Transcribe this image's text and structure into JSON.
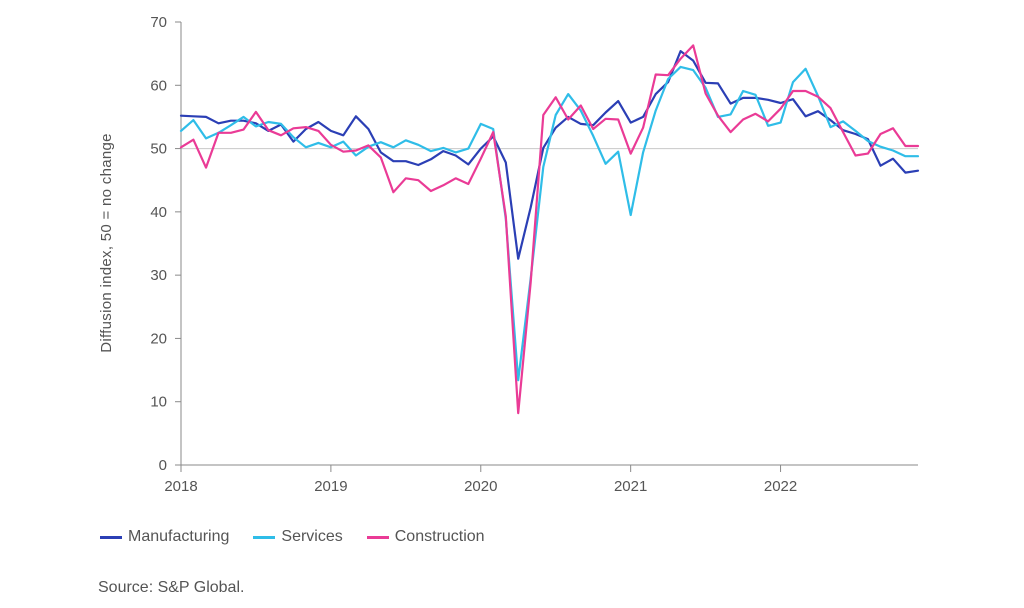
{
  "chart_data": {
    "type": "line",
    "ylabel": "Diffusion index, 50 = no change",
    "ylim": [
      0,
      70
    ],
    "yticks": [
      0,
      10,
      20,
      30,
      40,
      50,
      60,
      70
    ],
    "xlim": [
      2018.0,
      2022.917
    ],
    "xticks": [
      2018,
      2019,
      2020,
      2021,
      2022
    ],
    "xtick_labels": [
      "2018",
      "2019",
      "2020",
      "2021",
      "2022"
    ],
    "reference_line": 50,
    "x": [
      2018.0,
      2018.083,
      2018.167,
      2018.25,
      2018.333,
      2018.417,
      2018.5,
      2018.583,
      2018.667,
      2018.75,
      2018.833,
      2018.917,
      2019.0,
      2019.083,
      2019.167,
      2019.25,
      2019.333,
      2019.417,
      2019.5,
      2019.583,
      2019.667,
      2019.75,
      2019.833,
      2019.917,
      2020.0,
      2020.083,
      2020.167,
      2020.25,
      2020.333,
      2020.417,
      2020.5,
      2020.583,
      2020.667,
      2020.75,
      2020.833,
      2020.917,
      2021.0,
      2021.083,
      2021.167,
      2021.25,
      2021.333,
      2021.417,
      2021.5,
      2021.583,
      2021.667,
      2021.75,
      2021.833,
      2021.917,
      2022.0,
      2022.083,
      2022.167,
      2022.25,
      2022.333,
      2022.417,
      2022.5,
      2022.583,
      2022.667,
      2022.75,
      2022.833,
      2022.917
    ],
    "series": [
      {
        "name": "Manufacturing",
        "color": "#2b3fb5",
        "values": [
          55.2,
          55.1,
          55.0,
          54.0,
          54.4,
          54.4,
          54.0,
          52.8,
          53.8,
          51.1,
          53.1,
          54.2,
          52.8,
          52.1,
          55.1,
          53.1,
          49.4,
          48.0,
          48.0,
          47.4,
          48.3,
          49.6,
          48.9,
          47.5,
          50.0,
          51.9,
          47.8,
          32.6,
          40.7,
          50.1,
          53.3,
          55.0,
          53.9,
          53.7,
          55.7,
          57.5,
          54.1,
          55.0,
          58.6,
          60.5,
          65.4,
          63.9,
          60.4,
          60.3,
          57.1,
          58.0,
          58.0,
          57.7,
          57.2,
          57.8,
          55.1,
          55.9,
          54.5,
          52.9,
          52.3,
          51.5,
          47.3,
          48.4,
          46.2,
          46.5
        ]
      },
      {
        "name": "Services",
        "color": "#2fbde8",
        "values": [
          52.8,
          54.5,
          51.6,
          52.5,
          53.7,
          55.0,
          53.5,
          54.2,
          53.9,
          51.8,
          50.2,
          50.9,
          50.2,
          51.1,
          48.9,
          50.3,
          51.0,
          50.2,
          51.3,
          50.6,
          49.6,
          50.1,
          49.4,
          50.0,
          53.9,
          53.1,
          38.9,
          13.4,
          29.5,
          47.1,
          55.3,
          58.6,
          56.0,
          52.0,
          47.6,
          49.5,
          39.5,
          49.4,
          56.0,
          61.0,
          62.9,
          62.4,
          59.6,
          55.0,
          55.4,
          59.1,
          58.5,
          53.6,
          54.1,
          60.5,
          62.6,
          58.3,
          53.4,
          54.3,
          52.8,
          51.2,
          50.3,
          49.7,
          48.8,
          48.8
        ]
      },
      {
        "name": "Construction",
        "color": "#ea3b96",
        "values": [
          50.2,
          51.4,
          47.0,
          52.5,
          52.5,
          53.0,
          55.8,
          52.9,
          52.1,
          53.2,
          53.4,
          52.8,
          50.6,
          49.5,
          49.7,
          50.5,
          48.6,
          43.1,
          45.3,
          45.0,
          43.3,
          44.2,
          45.3,
          44.4,
          48.4,
          52.6,
          39.3,
          8.2,
          28.9,
          55.3,
          58.1,
          54.6,
          56.8,
          53.1,
          54.7,
          54.6,
          49.2,
          53.3,
          61.7,
          61.6,
          64.2,
          66.3,
          58.7,
          55.2,
          52.6,
          54.6,
          55.5,
          54.3,
          56.3,
          59.1,
          59.1,
          58.2,
          56.4,
          52.6,
          48.9,
          49.2,
          52.3,
          53.2,
          50.4,
          50.4
        ]
      }
    ]
  },
  "legend": {
    "items": [
      {
        "label": "Manufacturing",
        "color": "#2b3fb5"
      },
      {
        "label": "Services",
        "color": "#2fbde8"
      },
      {
        "label": "Construction",
        "color": "#ea3b96"
      }
    ]
  },
  "source": "Source: S&P Global."
}
